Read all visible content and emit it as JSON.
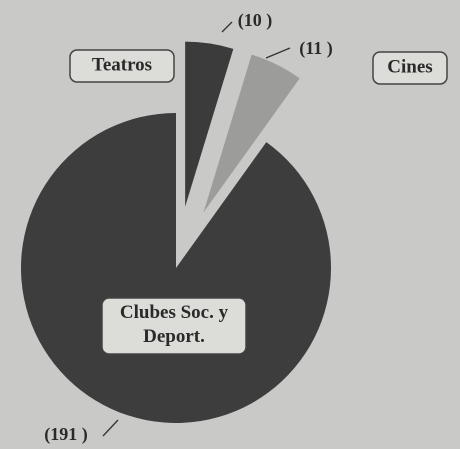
{
  "chart_data": {
    "type": "pie",
    "categories": [
      "Teatros",
      "Cines",
      "Clubes Soc. y Deport."
    ],
    "values": [
      10,
      11,
      191
    ],
    "value_labels": [
      "(10 )",
      "(11 )",
      "(191 )"
    ],
    "colors": [
      "#3b3b3b",
      "#9c9c9a",
      "#3d3d3d"
    ]
  }
}
